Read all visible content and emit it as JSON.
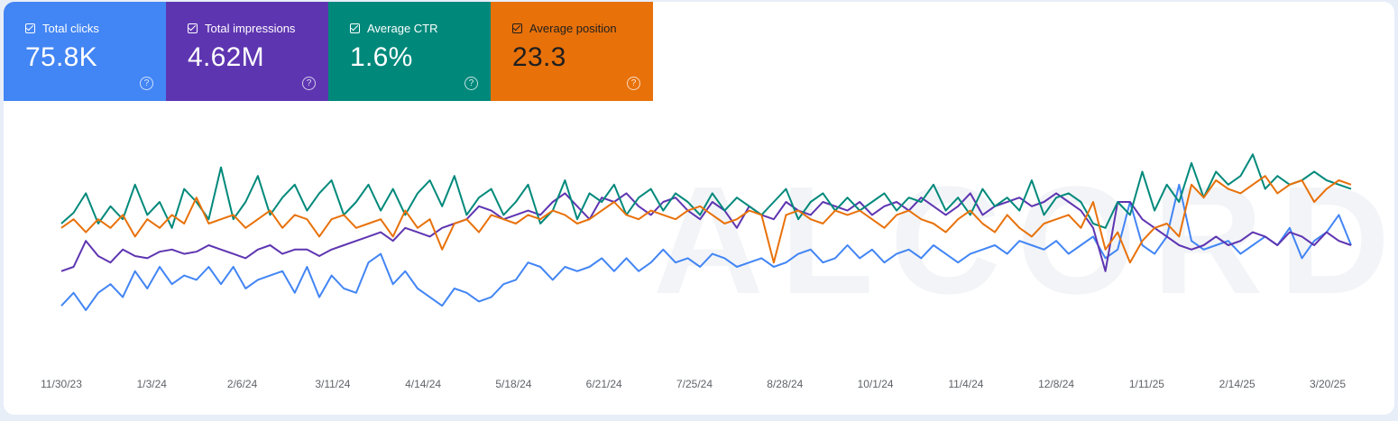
{
  "metrics": [
    {
      "label": "Total clicks",
      "value": "75.8K",
      "color": "#4285f4",
      "checked": true
    },
    {
      "label": "Total impressions",
      "value": "4.62M",
      "color": "#5e35b1",
      "checked": true
    },
    {
      "label": "Average CTR",
      "value": "1.6%",
      "color": "#00897b",
      "checked": true
    },
    {
      "label": "Average position",
      "value": "23.3",
      "color": "#e8710a",
      "checked": true
    }
  ],
  "watermark": "ALCORDS",
  "chart_data": {
    "type": "line",
    "x_tick_labels": [
      "11/30/23",
      "1/3/24",
      "2/6/24",
      "3/11/24",
      "4/14/24",
      "5/18/24",
      "6/21/24",
      "7/25/24",
      "8/28/24",
      "10/1/24",
      "11/4/24",
      "12/8/24",
      "1/11/25",
      "2/14/25",
      "3/20/25"
    ],
    "x_range": [
      "11/30/23",
      "3/28/25"
    ],
    "grid": false,
    "legend": "metric tiles above chart",
    "series": [
      {
        "name": "Total clicks",
        "color": "#4285f4",
        "values": [
          0.78,
          0.72,
          0.8,
          0.72,
          0.68,
          0.74,
          0.62,
          0.7,
          0.6,
          0.68,
          0.64,
          0.66,
          0.6,
          0.68,
          0.6,
          0.7,
          0.66,
          0.64,
          0.62,
          0.72,
          0.6,
          0.74,
          0.64,
          0.7,
          0.72,
          0.58,
          0.54,
          0.68,
          0.62,
          0.7,
          0.74,
          0.78,
          0.7,
          0.72,
          0.76,
          0.74,
          0.68,
          0.66,
          0.58,
          0.6,
          0.66,
          0.6,
          0.62,
          0.6,
          0.56,
          0.62,
          0.56,
          0.62,
          0.58,
          0.52,
          0.58,
          0.56,
          0.6,
          0.54,
          0.56,
          0.6,
          0.58,
          0.56,
          0.6,
          0.58,
          0.54,
          0.52,
          0.58,
          0.56,
          0.5,
          0.56,
          0.52,
          0.58,
          0.54,
          0.52,
          0.56,
          0.5,
          0.54,
          0.58,
          0.54,
          0.52,
          0.5,
          0.54,
          0.48,
          0.5,
          0.52,
          0.48,
          0.54,
          0.5,
          0.46,
          0.56,
          0.52,
          0.3,
          0.5,
          0.54,
          0.46,
          0.22,
          0.48,
          0.52,
          0.5,
          0.48,
          0.54,
          0.5,
          0.46,
          0.5,
          0.42,
          0.56,
          0.48,
          0.44,
          0.36,
          0.5
        ]
      },
      {
        "name": "Total impressions",
        "color": "#5e35b1",
        "values": [
          0.62,
          0.6,
          0.48,
          0.55,
          0.58,
          0.52,
          0.55,
          0.56,
          0.53,
          0.52,
          0.54,
          0.53,
          0.5,
          0.52,
          0.54,
          0.56,
          0.52,
          0.5,
          0.54,
          0.52,
          0.52,
          0.55,
          0.52,
          0.5,
          0.48,
          0.46,
          0.44,
          0.48,
          0.42,
          0.44,
          0.46,
          0.42,
          0.4,
          0.38,
          0.32,
          0.34,
          0.38,
          0.36,
          0.34,
          0.36,
          0.3,
          0.26,
          0.32,
          0.38,
          0.28,
          0.3,
          0.26,
          0.32,
          0.36,
          0.3,
          0.28,
          0.34,
          0.38,
          0.3,
          0.34,
          0.42,
          0.32,
          0.36,
          0.38,
          0.3,
          0.34,
          0.36,
          0.3,
          0.32,
          0.34,
          0.3,
          0.36,
          0.32,
          0.3,
          0.34,
          0.28,
          0.32,
          0.36,
          0.32,
          0.26,
          0.36,
          0.32,
          0.3,
          0.28,
          0.32,
          0.3,
          0.26,
          0.3,
          0.34,
          0.42,
          0.62,
          0.3,
          0.3,
          0.38,
          0.42,
          0.46,
          0.5,
          0.52,
          0.5,
          0.46,
          0.5,
          0.48,
          0.44,
          0.46,
          0.5,
          0.44,
          0.46,
          0.5,
          0.44,
          0.48,
          0.5
        ]
      },
      {
        "name": "Average CTR",
        "color": "#00897b",
        "values": [
          0.4,
          0.35,
          0.26,
          0.4,
          0.32,
          0.38,
          0.22,
          0.36,
          0.3,
          0.42,
          0.24,
          0.3,
          0.38,
          0.14,
          0.38,
          0.3,
          0.18,
          0.36,
          0.28,
          0.22,
          0.34,
          0.26,
          0.2,
          0.36,
          0.3,
          0.22,
          0.34,
          0.24,
          0.36,
          0.26,
          0.2,
          0.32,
          0.18,
          0.36,
          0.28,
          0.24,
          0.36,
          0.3,
          0.22,
          0.4,
          0.34,
          0.2,
          0.38,
          0.26,
          0.3,
          0.22,
          0.36,
          0.28,
          0.24,
          0.34,
          0.26,
          0.3,
          0.36,
          0.26,
          0.34,
          0.28,
          0.32,
          0.36,
          0.3,
          0.24,
          0.38,
          0.3,
          0.26,
          0.34,
          0.28,
          0.34,
          0.3,
          0.26,
          0.34,
          0.28,
          0.3,
          0.22,
          0.34,
          0.28,
          0.36,
          0.24,
          0.32,
          0.28,
          0.34,
          0.2,
          0.36,
          0.28,
          0.26,
          0.3,
          0.4,
          0.42,
          0.3,
          0.36,
          0.16,
          0.34,
          0.22,
          0.3,
          0.12,
          0.28,
          0.16,
          0.22,
          0.18,
          0.08,
          0.24,
          0.18,
          0.22,
          0.2,
          0.16,
          0.2,
          0.22,
          0.24
        ]
      },
      {
        "name": "Average position",
        "color": "#e8710a",
        "values": [
          0.42,
          0.38,
          0.44,
          0.38,
          0.42,
          0.36,
          0.46,
          0.38,
          0.42,
          0.36,
          0.4,
          0.28,
          0.4,
          0.38,
          0.36,
          0.42,
          0.38,
          0.34,
          0.42,
          0.36,
          0.38,
          0.46,
          0.38,
          0.36,
          0.42,
          0.4,
          0.38,
          0.46,
          0.34,
          0.42,
          0.38,
          0.52,
          0.4,
          0.38,
          0.44,
          0.36,
          0.38,
          0.4,
          0.36,
          0.38,
          0.34,
          0.36,
          0.4,
          0.38,
          0.34,
          0.3,
          0.36,
          0.38,
          0.34,
          0.36,
          0.38,
          0.34,
          0.32,
          0.36,
          0.4,
          0.38,
          0.34,
          0.36,
          0.58,
          0.36,
          0.34,
          0.38,
          0.4,
          0.34,
          0.36,
          0.34,
          0.38,
          0.42,
          0.36,
          0.34,
          0.38,
          0.4,
          0.44,
          0.38,
          0.34,
          0.4,
          0.44,
          0.36,
          0.42,
          0.46,
          0.4,
          0.38,
          0.36,
          0.42,
          0.3,
          0.52,
          0.44,
          0.58,
          0.48,
          0.42,
          0.4,
          0.46,
          0.22,
          0.28,
          0.2,
          0.24,
          0.26,
          0.22,
          0.18,
          0.26,
          0.22,
          0.2,
          0.3,
          0.24,
          0.2,
          0.22
        ]
      }
    ]
  }
}
